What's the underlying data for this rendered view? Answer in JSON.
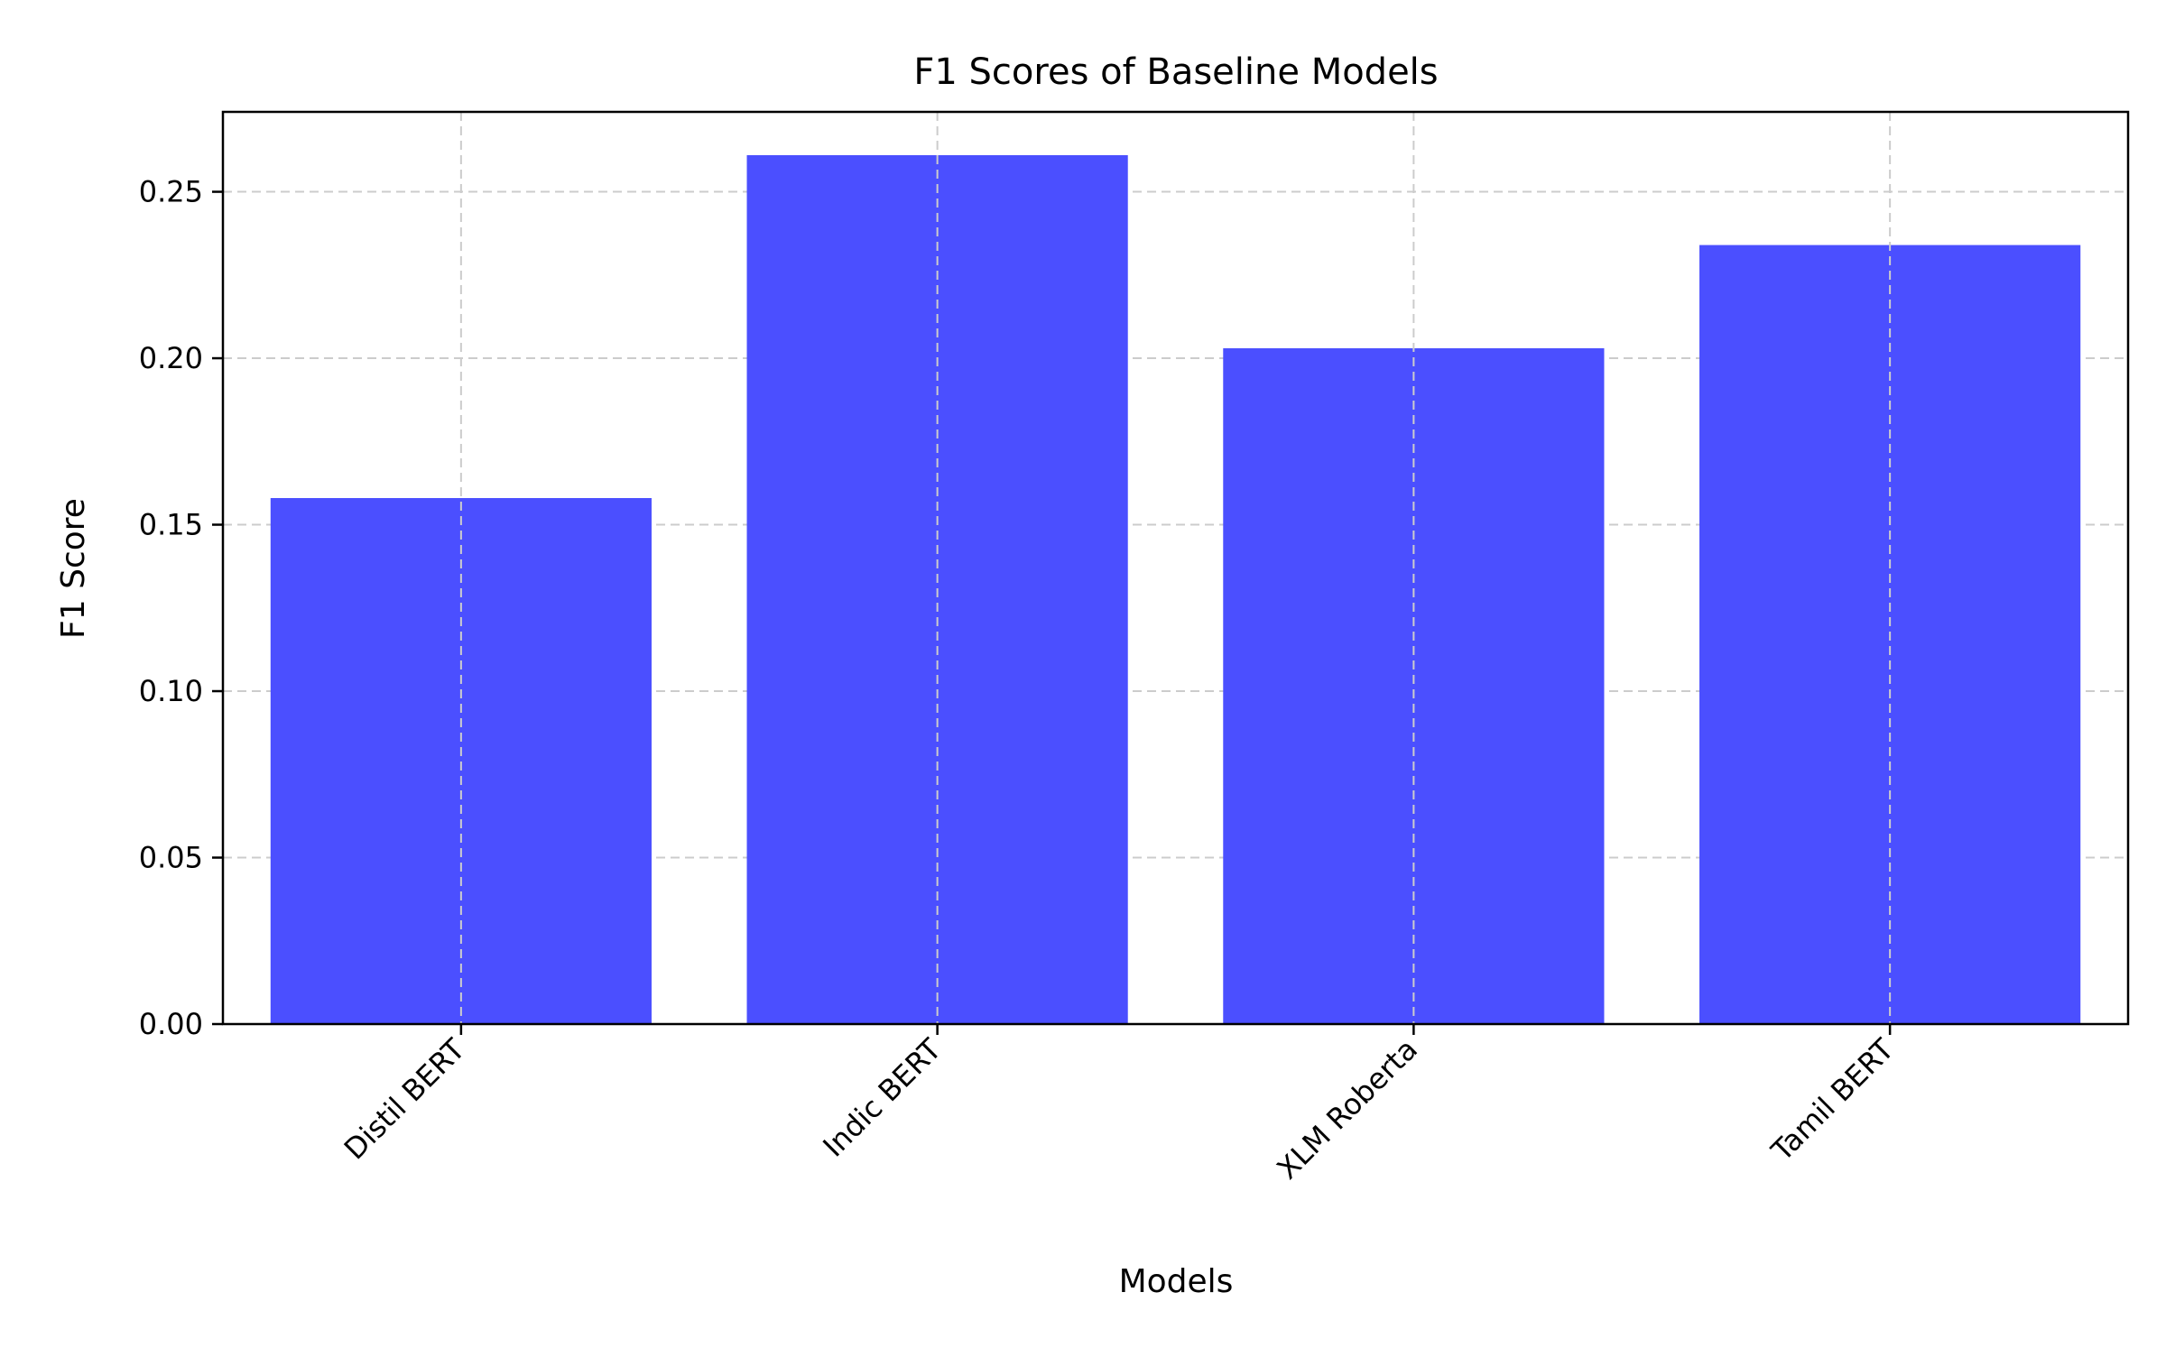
{
  "chart_data": {
    "type": "bar",
    "title": "F1 Scores of Baseline Models",
    "xlabel": "Models",
    "ylabel": "F1 Score",
    "categories": [
      "Distil BERT",
      "Indic BERT",
      "XLM Roberta",
      "Tamil BERT"
    ],
    "values": [
      0.158,
      0.261,
      0.203,
      0.234
    ],
    "ylim": [
      0,
      0.274
    ],
    "yticks": [
      0.0,
      0.05,
      0.1,
      0.15,
      0.2,
      0.25
    ],
    "ytick_labels": [
      "0.00",
      "0.05",
      "0.10",
      "0.15",
      "0.20",
      "0.25"
    ],
    "grid": true,
    "grid_style": "dashed",
    "bar_color": "#4b4fff",
    "grid_color": "#cccccc",
    "xtick_rotation": "45 degrees"
  }
}
